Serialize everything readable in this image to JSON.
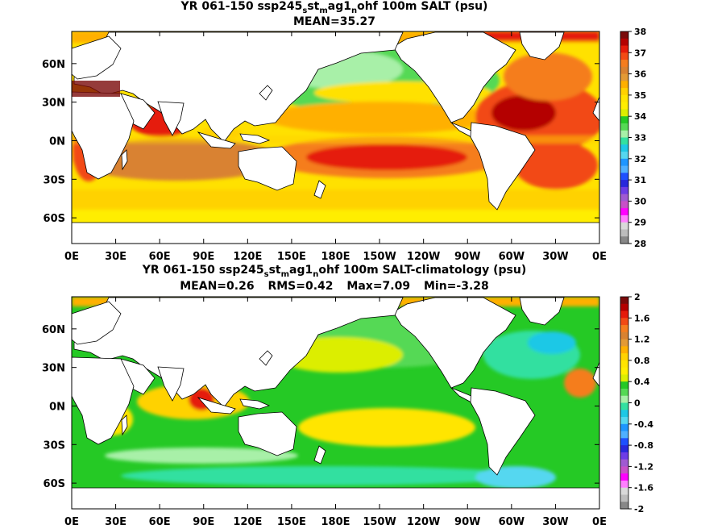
{
  "chart_data": [
    {
      "type": "heatmap",
      "title": {
        "pre": "YR 061-150 ssp245",
        "a": "s",
        "b": "st",
        "c": "m",
        "d": "ag1",
        "e": "n",
        "f": "ohf 100m SALT (psu)"
      },
      "stats": {
        "mean": "MEAN=35.27"
      },
      "xticks": [
        "0E",
        "30E",
        "60E",
        "90E",
        "120E",
        "150E",
        "180E",
        "150W",
        "120W",
        "90W",
        "60W",
        "30W",
        "0E"
      ],
      "yticks": [
        "60N",
        "30N",
        "0N",
        "30S",
        "60S"
      ],
      "ylim": [
        -80,
        85
      ],
      "colorbar": {
        "ticks": [
          "38",
          "37",
          "36",
          "35",
          "34",
          "33",
          "32",
          "31",
          "30",
          "29",
          "28"
        ],
        "colors": [
          "#7a0a0a",
          "#b40000",
          "#e51a0a",
          "#f24a14",
          "#f57d1e",
          "#d98230",
          "#e39a35",
          "#ffb000",
          "#ffd200",
          "#ffe500",
          "#ffee00",
          "#dcee00",
          "#25c925",
          "#55d955",
          "#a8f0a8",
          "#33e0a0",
          "#1ec8e6",
          "#55d7f0",
          "#1e96ff",
          "#4fb0ff",
          "#1e50ff",
          "#2828dc",
          "#6e3ce6",
          "#a05ad2",
          "#c850c8",
          "#ff00ff",
          "#ff7fff",
          "#d9d9d9",
          "#bcbcbc",
          "#888888"
        ]
      }
    },
    {
      "type": "heatmap",
      "title": {
        "pre": "YR 061-150 ssp245",
        "a": "s",
        "b": "st",
        "c": "m",
        "d": "ag1",
        "e": "n",
        "f": "ohf 100m SALT-climatology (psu)"
      },
      "stats": {
        "mean": "MEAN=0.26",
        "rms": "RMS=0.42",
        "max": "Max=7.09",
        "min": "Min=-3.28"
      },
      "xticks": [
        "0E",
        "30E",
        "60E",
        "90E",
        "120E",
        "150E",
        "180E",
        "150W",
        "120W",
        "90W",
        "60W",
        "30W",
        "0E"
      ],
      "yticks": [
        "60N",
        "30N",
        "0N",
        "30S",
        "60S"
      ],
      "ylim": [
        -80,
        85
      ],
      "colorbar": {
        "ticks": [
          "2",
          "1.6",
          "1.2",
          "0.8",
          "0.4",
          "0",
          "-0.4",
          "-0.8",
          "-1.2",
          "-1.6",
          "-2"
        ],
        "colors": [
          "#7a0a0a",
          "#b40000",
          "#e51a0a",
          "#f24a14",
          "#f57d1e",
          "#d98230",
          "#e39a35",
          "#ffb000",
          "#ffd200",
          "#ffe500",
          "#ffee00",
          "#dcee00",
          "#25c925",
          "#55d955",
          "#a8f0a8",
          "#33e0a0",
          "#1ec8e6",
          "#55d7f0",
          "#1e96ff",
          "#4fb0ff",
          "#1e50ff",
          "#2828dc",
          "#6e3ce6",
          "#a05ad2",
          "#c850c8",
          "#ff00ff",
          "#ff7fff",
          "#d9d9d9",
          "#bcbcbc",
          "#888888"
        ]
      }
    }
  ]
}
